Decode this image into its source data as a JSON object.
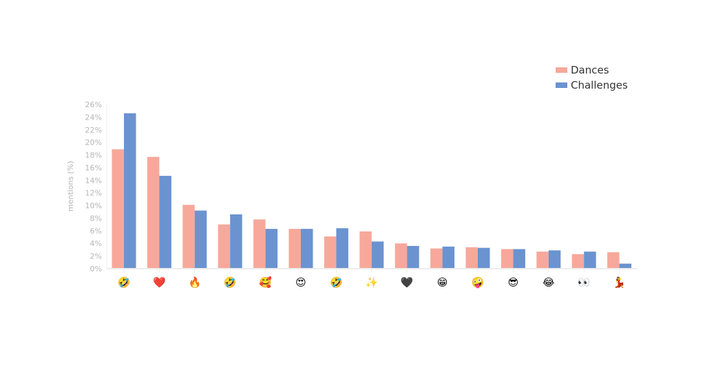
{
  "chart_data": {
    "type": "bar",
    "title": "",
    "xlabel": "",
    "ylabel": "mentions (%)",
    "ylim": [
      0,
      26
    ],
    "yticks": [
      "0%",
      "2%",
      "4%",
      "6%",
      "8%",
      "10%",
      "12%",
      "14%",
      "16%",
      "18%",
      "20%",
      "22%",
      "24%",
      "26%"
    ],
    "grid": false,
    "legend_position": "top-right",
    "categories": [
      "🤣",
      "❤️",
      "🔥",
      "🤣",
      "🥰",
      "😍",
      "🤣",
      "✨",
      "🖤",
      "😁",
      "🤪",
      "😎",
      "😂",
      "👀",
      "💃"
    ],
    "series": [
      {
        "name": "Dances",
        "color": "#f7a89a",
        "values": [
          18.9,
          17.7,
          10.1,
          7.0,
          7.8,
          6.3,
          5.1,
          5.9,
          4.0,
          3.2,
          3.4,
          3.1,
          2.7,
          2.3,
          2.6
        ]
      },
      {
        "name": "Challenges",
        "color": "#6a93d0",
        "values": [
          24.6,
          14.7,
          9.2,
          8.6,
          6.3,
          6.3,
          6.4,
          4.3,
          3.6,
          3.5,
          3.3,
          3.1,
          2.9,
          2.7,
          0.8
        ]
      }
    ]
  }
}
